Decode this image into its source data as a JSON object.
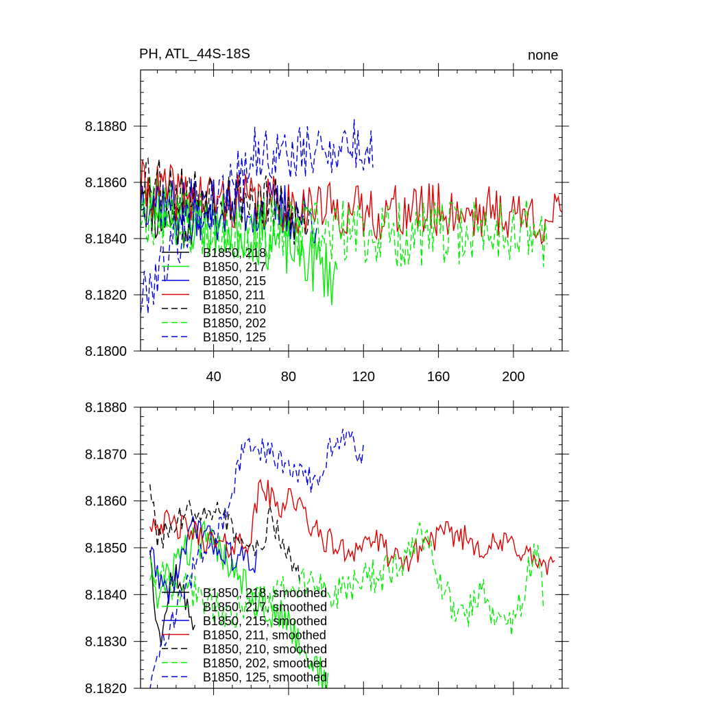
{
  "header": {
    "left_title": "PH, ATL_44S-18S",
    "right_title": "none"
  },
  "colors": {
    "B1850_218": "#000000",
    "B1850_217": "#00ee00",
    "B1850_215": "#0000dd",
    "B1850_211": "#dd0000",
    "B1850_210": "#000000",
    "B1850_202": "#00ee00",
    "B1850_125": "#0000dd"
  },
  "chart_data": [
    {
      "type": "line",
      "title": "PH, ATL_44S-18S",
      "xlim": [
        1,
        226
      ],
      "ylim": [
        8.18,
        8.19
      ],
      "xticks": [
        40,
        80,
        120,
        160,
        200
      ],
      "xtick_labels": [
        "40",
        "80",
        "120",
        "160",
        "200"
      ],
      "yticks": [
        8.18,
        8.182,
        8.184,
        8.186,
        8.188
      ],
      "ytick_labels": [
        "8.1800",
        "8.1820",
        "8.1840",
        "8.1860",
        "8.1880"
      ],
      "legend_position": "lower-left",
      "series": [
        {
          "name": "B1850, 218",
          "color": "#000000",
          "dash": "solid",
          "x_start": 1,
          "length": 30,
          "anchors": [
            [
              1,
              8.1856
            ],
            [
              10,
              8.1848
            ],
            [
              20,
              8.1846
            ],
            [
              30,
              8.1848
            ]
          ],
          "amp": 0.0011,
          "seed": 11
        },
        {
          "name": "B1850, 217",
          "color": "#00ee00",
          "dash": "solid",
          "x_start": 1,
          "length": 106,
          "anchors": [
            [
              1,
              8.1856
            ],
            [
              30,
              8.1846
            ],
            [
              60,
              8.1843
            ],
            [
              85,
              8.1836
            ],
            [
              106,
              8.1826
            ]
          ],
          "amp": 0.0012,
          "seed": 23
        },
        {
          "name": "B1850, 215",
          "color": "#0000dd",
          "dash": "solid",
          "x_start": 1,
          "length": 95,
          "anchors": [
            [
              1,
              8.1856
            ],
            [
              30,
              8.185
            ],
            [
              60,
              8.1851
            ],
            [
              95,
              8.1848
            ]
          ],
          "amp": 0.0011,
          "seed": 37
        },
        {
          "name": "B1850, 211",
          "color": "#dd0000",
          "dash": "solid",
          "x_start": 1,
          "length": 226,
          "anchors": [
            [
              1,
              8.1858
            ],
            [
              40,
              8.1854
            ],
            [
              80,
              8.1852
            ],
            [
              120,
              8.1849
            ],
            [
              160,
              8.185
            ],
            [
              200,
              8.1849
            ],
            [
              226,
              8.1846
            ]
          ],
          "amp": 0.001,
          "seed": 41
        },
        {
          "name": "B1850, 210",
          "color": "#000000",
          "dash": "dashed",
          "x_start": 1,
          "length": 91,
          "anchors": [
            [
              1,
              8.1866
            ],
            [
              20,
              8.1856
            ],
            [
              45,
              8.1857
            ],
            [
              70,
              8.1852
            ],
            [
              91,
              8.1844
            ]
          ],
          "amp": 0.0011,
          "seed": 53
        },
        {
          "name": "B1850, 202",
          "color": "#00ee00",
          "dash": "dashed",
          "x_start": 1,
          "length": 218,
          "anchors": [
            [
              1,
              8.185
            ],
            [
              50,
              8.1844
            ],
            [
              100,
              8.1842
            ],
            [
              150,
              8.1841
            ],
            [
              200,
              8.1844
            ],
            [
              218,
              8.184
            ]
          ],
          "amp": 0.0012,
          "seed": 67
        },
        {
          "name": "B1850, 125",
          "color": "#0000dd",
          "dash": "dashed",
          "x_start": 1,
          "length": 125,
          "anchors": [
            [
              1,
              8.1818
            ],
            [
              20,
              8.184
            ],
            [
              40,
              8.1852
            ],
            [
              60,
              8.187
            ],
            [
              90,
              8.187
            ],
            [
              110,
              8.1874
            ],
            [
              125,
              8.187
            ]
          ],
          "amp": 0.001,
          "seed": 79
        }
      ]
    },
    {
      "type": "line",
      "title": "",
      "xlim": [
        1,
        226
      ],
      "ylim": [
        8.182,
        8.188
      ],
      "xticks": [
        40,
        80,
        120,
        160,
        200
      ],
      "xtick_labels": [],
      "yticks": [
        8.182,
        8.183,
        8.184,
        8.185,
        8.186,
        8.187,
        8.188
      ],
      "ytick_labels": [
        "8.1820",
        "8.1830",
        "8.1840",
        "8.1850",
        "8.1860",
        "8.1870",
        "8.1880"
      ],
      "legend_position": "lower-left",
      "series": [
        {
          "name": "B1850, 218, smoothed",
          "color": "#000000",
          "dash": "solid",
          "x_start": 6,
          "length": 25,
          "anchors": [
            [
              6,
              8.1851
            ],
            [
              9,
              8.1837
            ],
            [
              12,
              8.1829
            ],
            [
              16,
              8.1841
            ],
            [
              20,
              8.1845
            ],
            [
              25,
              8.1838
            ],
            [
              30,
              8.1834
            ]
          ],
          "amp": 0.0003,
          "seed": 12
        },
        {
          "name": "B1850, 217, smoothed",
          "color": "#00ee00",
          "dash": "solid",
          "x_start": 6,
          "length": 96,
          "anchors": [
            [
              6,
              8.185
            ],
            [
              10,
              8.1838
            ],
            [
              20,
              8.1848
            ],
            [
              35,
              8.1852
            ],
            [
              50,
              8.1847
            ],
            [
              65,
              8.1838
            ],
            [
              80,
              8.1834
            ],
            [
              90,
              8.1827
            ],
            [
              101,
              8.1821
            ]
          ],
          "amp": 0.0004,
          "seed": 24
        },
        {
          "name": "B1850, 215, smoothed",
          "color": "#0000dd",
          "dash": "solid",
          "x_start": 6,
          "length": 58,
          "anchors": [
            [
              6,
              8.185
            ],
            [
              10,
              8.1845
            ],
            [
              15,
              8.184
            ],
            [
              20,
              8.1844
            ],
            [
              30,
              8.1855
            ],
            [
              40,
              8.1851
            ],
            [
              50,
              8.1848
            ],
            [
              63,
              8.1847
            ]
          ],
          "amp": 0.0003,
          "seed": 38
        },
        {
          "name": "B1850, 211, smoothed",
          "color": "#dd0000",
          "dash": "solid",
          "x_start": 6,
          "length": 217,
          "anchors": [
            [
              6,
              8.1856
            ],
            [
              25,
              8.1854
            ],
            [
              45,
              8.185
            ],
            [
              60,
              8.1852
            ],
            [
              65,
              8.1864
            ],
            [
              75,
              8.1858
            ],
            [
              80,
              8.1862
            ],
            [
              95,
              8.1853
            ],
            [
              110,
              8.1849
            ],
            [
              125,
              8.1852
            ],
            [
              140,
              8.1846
            ],
            [
              155,
              8.1852
            ],
            [
              170,
              8.1853
            ],
            [
              185,
              8.185
            ],
            [
              200,
              8.1851
            ],
            [
              215,
              8.1846
            ],
            [
              222,
              8.1845
            ]
          ],
          "amp": 0.0003,
          "seed": 42
        },
        {
          "name": "B1850, 210, smoothed",
          "color": "#000000",
          "dash": "dashed",
          "x_start": 6,
          "length": 81,
          "anchors": [
            [
              6,
              8.1865
            ],
            [
              10,
              8.1851
            ],
            [
              25,
              8.1857
            ],
            [
              35,
              8.1859
            ],
            [
              45,
              8.1857
            ],
            [
              55,
              8.1851
            ],
            [
              62,
              8.1848
            ],
            [
              70,
              8.1856
            ],
            [
              78,
              8.185
            ],
            [
              86,
              8.1845
            ]
          ],
          "amp": 0.0003,
          "seed": 54
        },
        {
          "name": "B1850, 202, smoothed",
          "color": "#00ee00",
          "dash": "dashed",
          "x_start": 6,
          "length": 211,
          "anchors": [
            [
              6,
              8.1845
            ],
            [
              30,
              8.184
            ],
            [
              50,
              8.1836
            ],
            [
              70,
              8.184
            ],
            [
              90,
              8.1842
            ],
            [
              110,
              8.184
            ],
            [
              125,
              8.1844
            ],
            [
              140,
              8.1845
            ],
            [
              150,
              8.1855
            ],
            [
              160,
              8.1845
            ],
            [
              170,
              8.1834
            ],
            [
              185,
              8.184
            ],
            [
              195,
              8.1832
            ],
            [
              205,
              8.184
            ],
            [
              212,
              8.185
            ],
            [
              216,
              8.1839
            ]
          ],
          "amp": 0.0004,
          "seed": 68
        },
        {
          "name": "B1850, 125, smoothed",
          "color": "#0000dd",
          "dash": "dashed",
          "x_start": 6,
          "length": 115,
          "anchors": [
            [
              6,
              8.1821
            ],
            [
              15,
              8.1832
            ],
            [
              30,
              8.1846
            ],
            [
              45,
              8.1855
            ],
            [
              55,
              8.187
            ],
            [
              65,
              8.1871
            ],
            [
              75,
              8.1869
            ],
            [
              85,
              8.1866
            ],
            [
              95,
              8.1864
            ],
            [
              103,
              8.1872
            ],
            [
              110,
              8.1874
            ],
            [
              120,
              8.187
            ]
          ],
          "amp": 0.0003,
          "seed": 80
        }
      ]
    }
  ]
}
